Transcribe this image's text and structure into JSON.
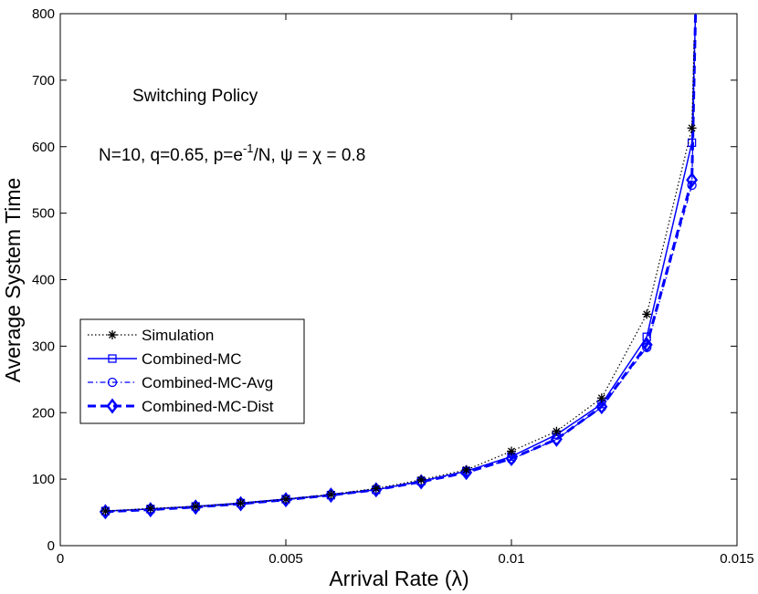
{
  "chart_data": {
    "type": "line",
    "xlabel": "Arrival Rate (λ)",
    "ylabel": "Average System Time",
    "xlim": [
      0,
      0.015
    ],
    "ylim": [
      0,
      800
    ],
    "xticks": [
      0,
      0.005,
      0.01,
      0.015
    ],
    "xtick_labels": [
      "0",
      "0.005",
      "0.01",
      "0.015"
    ],
    "yticks": [
      0,
      100,
      200,
      300,
      400,
      500,
      600,
      700,
      800
    ],
    "ytick_labels": [
      "0",
      "100",
      "200",
      "300",
      "400",
      "500",
      "600",
      "700",
      "800"
    ],
    "grid": false,
    "legend_position": "middle-left",
    "annotations": {
      "policy": "Switching Policy",
      "params_prefix": "N=10, q=0.65, p=e",
      "params_sup": "-1",
      "params_suffix": "/N, ψ = χ = 0.8"
    },
    "series": [
      {
        "name": "Simulation",
        "color": "#000000",
        "style": "dotted",
        "marker": "star",
        "x": [
          0.001,
          0.002,
          0.003,
          0.004,
          0.005,
          0.006,
          0.007,
          0.008,
          0.009,
          0.01,
          0.011,
          0.012,
          0.013,
          0.014,
          0.01405
        ],
        "y": [
          52,
          56,
          59,
          64,
          70,
          77,
          86,
          99,
          114,
          142,
          172,
          222,
          348,
          628,
          760
        ]
      },
      {
        "name": "Combined-MC",
        "color": "#0000ff",
        "style": "solid",
        "marker": "square",
        "x": [
          0.001,
          0.002,
          0.003,
          0.004,
          0.005,
          0.006,
          0.007,
          0.008,
          0.009,
          0.01,
          0.011,
          0.012,
          0.013,
          0.014,
          0.01408
        ],
        "y": [
          52,
          55,
          59,
          64,
          70,
          76,
          84,
          97,
          112,
          134,
          167,
          213,
          314,
          606,
          800
        ]
      },
      {
        "name": "Combined-MC-Avg",
        "color": "#0000ff",
        "style": "dashdot",
        "marker": "circle",
        "x": [
          0.001,
          0.002,
          0.003,
          0.004,
          0.005,
          0.006,
          0.007,
          0.008,
          0.009,
          0.01,
          0.011,
          0.012,
          0.013,
          0.014,
          0.01408
        ],
        "y": [
          51,
          55,
          58,
          63,
          69,
          76,
          84,
          96,
          111,
          130,
          160,
          208,
          298,
          542,
          800
        ]
      },
      {
        "name": "Combined-MC-Dist",
        "color": "#0000ff",
        "style": "dashed",
        "marker": "diamond",
        "x": [
          0.001,
          0.002,
          0.003,
          0.004,
          0.005,
          0.006,
          0.007,
          0.008,
          0.009,
          0.01,
          0.011,
          0.012,
          0.013,
          0.014,
          0.01408
        ],
        "y": [
          51,
          54,
          58,
          63,
          69,
          76,
          84,
          96,
          110,
          131,
          160,
          209,
          302,
          550,
          800
        ]
      }
    ]
  }
}
